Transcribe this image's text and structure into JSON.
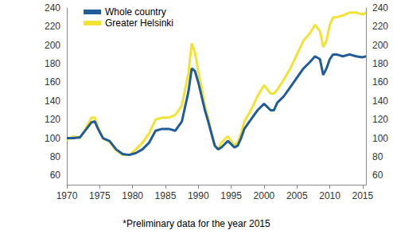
{
  "chart_data": {
    "type": "line",
    "footnote": "*Preliminary data for the year 2015",
    "x": [
      1970,
      1971,
      1972,
      1973,
      1973.75,
      1974.25,
      1974.75,
      1975.5,
      1976.5,
      1977.5,
      1978.5,
      1979.5,
      1980.5,
      1981.5,
      1982.5,
      1983.5,
      1984.5,
      1985.5,
      1986.5,
      1987.5,
      1988.5,
      1989,
      1989.5,
      1990,
      1990.5,
      1991,
      1991.5,
      1992,
      1992.5,
      1993,
      1993.5,
      1994.5,
      1995.5,
      1996,
      1996.5,
      1997,
      1998,
      1999,
      2000,
      2001,
      2001.5,
      2002,
      2003,
      2004,
      2005,
      2006,
      2007,
      2007.75,
      2008.5,
      2009,
      2009.5,
      2010,
      2010.5,
      2011,
      2012,
      2013,
      2014,
      2015,
      2015.5
    ],
    "series": [
      {
        "name": "Whole country",
        "color": "#1f5c99",
        "values": [
          100,
          100,
          101,
          110,
          117,
          118,
          110,
          100,
          97,
          88,
          83,
          82,
          84,
          88,
          95,
          108,
          110,
          110,
          108,
          118,
          150,
          175,
          172,
          160,
          145,
          130,
          118,
          105,
          92,
          88,
          90,
          97,
          90,
          92,
          100,
          110,
          120,
          130,
          137,
          130,
          130,
          138,
          145,
          155,
          165,
          175,
          182,
          188,
          185,
          168,
          175,
          185,
          190,
          190,
          188,
          190,
          188,
          187,
          188
        ]
      },
      {
        "name": "Greater Helsinki",
        "color": "#f2e234",
        "values": [
          98,
          102,
          100,
          112,
          122,
          122,
          112,
          100,
          96,
          87,
          82,
          82,
          88,
          95,
          105,
          120,
          122,
          122,
          125,
          135,
          170,
          202,
          192,
          172,
          155,
          135,
          122,
          105,
          92,
          88,
          95,
          102,
          92,
          96,
          105,
          118,
          130,
          145,
          157,
          148,
          148,
          152,
          163,
          175,
          190,
          205,
          213,
          222,
          215,
          198,
          205,
          222,
          230,
          230,
          232,
          235,
          235,
          233,
          235
        ]
      }
    ],
    "xlim": [
      1970,
      2015.5
    ],
    "xticks": [
      1970,
      1975,
      1980,
      1985,
      1990,
      1995,
      2000,
      2005,
      2010,
      2015
    ],
    "ylim": [
      50,
      240
    ],
    "yticks": [
      60,
      80,
      100,
      120,
      140,
      160,
      180,
      200,
      220,
      240
    ],
    "y2lim": [
      50,
      240
    ],
    "y2ticks": [
      60,
      80,
      100,
      120,
      140,
      160,
      180,
      200,
      220,
      240
    ],
    "grid": false,
    "legend": "upper left"
  }
}
